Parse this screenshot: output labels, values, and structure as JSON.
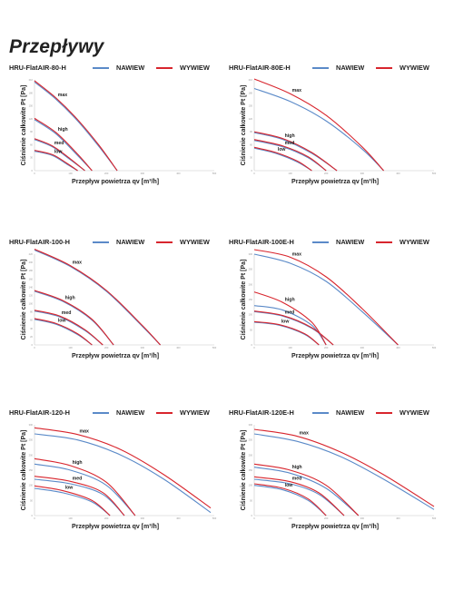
{
  "page": {
    "title": "Przepływy"
  },
  "legend": {
    "supply": "NAWIEW",
    "exhaust": "WYWIEW",
    "supply_color": "#5b8ac8",
    "exhaust_color": "#d8252d"
  },
  "axes": {
    "ylabel": "Ciśnienie całkowite Pt [Pa]",
    "xlabel": "Przepływ powietrza qv [m³/h]"
  },
  "chart_data": [
    {
      "type": "line",
      "title": "HRU-FlatAIR-80-H",
      "xlim": [
        0,
        500
      ],
      "ylim": [
        0,
        210
      ],
      "x_ticks": [
        0,
        100,
        200,
        300,
        400,
        500
      ],
      "y_ticks": [
        0,
        30,
        60,
        90,
        120,
        150,
        180,
        210
      ],
      "series": [
        {
          "name": "max",
          "x": [
            0,
            60,
            120,
            180,
            230
          ],
          "nawiew": [
            205,
            165,
            115,
            55,
            0
          ],
          "wywiew": [
            208,
            168,
            118,
            58,
            0
          ]
        },
        {
          "name": "high",
          "x": [
            0,
            60,
            120,
            160
          ],
          "nawiew": [
            118,
            85,
            35,
            0
          ],
          "wywiew": [
            121,
            88,
            38,
            0
          ]
        },
        {
          "name": "med",
          "x": [
            0,
            50,
            100,
            140
          ],
          "nawiew": [
            72,
            55,
            25,
            0
          ],
          "wywiew": [
            74,
            57,
            27,
            0
          ]
        },
        {
          "name": "low",
          "x": [
            0,
            50,
            90,
            120
          ],
          "nawiew": [
            45,
            35,
            15,
            0
          ],
          "wywiew": [
            47,
            37,
            17,
            0
          ]
        }
      ]
    },
    {
      "type": "line",
      "title": "HRU-FlatAIR-80E-H",
      "xlim": [
        0,
        500
      ],
      "ylim": [
        0,
        210
      ],
      "x_ticks": [
        0,
        100,
        200,
        300,
        400,
        500
      ],
      "y_ticks": [
        0,
        30,
        60,
        90,
        120,
        150,
        180,
        210
      ],
      "series": [
        {
          "name": "max",
          "x": [
            0,
            100,
            200,
            300,
            360
          ],
          "nawiew": [
            190,
            160,
            115,
            50,
            0
          ],
          "wywiew": [
            212,
            178,
            128,
            55,
            0
          ]
        },
        {
          "name": "high",
          "x": [
            0,
            80,
            160,
            230
          ],
          "nawiew": [
            88,
            72,
            40,
            0
          ],
          "wywiew": [
            90,
            74,
            42,
            0
          ]
        },
        {
          "name": "med",
          "x": [
            0,
            80,
            150,
            200
          ],
          "nawiew": [
            70,
            55,
            30,
            0
          ],
          "wywiew": [
            72,
            57,
            32,
            0
          ]
        },
        {
          "name": "low",
          "x": [
            0,
            60,
            120,
            160
          ],
          "nawiew": [
            52,
            40,
            20,
            0
          ],
          "wywiew": [
            54,
            42,
            22,
            0
          ]
        }
      ]
    },
    {
      "type": "line",
      "title": "HRU-FlatAIR-100-H",
      "xlim": [
        0,
        500
      ],
      "ylim": [
        0,
        220
      ],
      "x_ticks": [
        0,
        100,
        200,
        300,
        400,
        500
      ],
      "y_ticks": [
        0,
        20,
        40,
        60,
        80,
        100,
        120,
        140,
        160,
        180,
        200,
        220
      ],
      "series": [
        {
          "name": "max",
          "x": [
            0,
            100,
            200,
            300,
            350
          ],
          "nawiew": [
            230,
            190,
            130,
            45,
            0
          ],
          "wywiew": [
            232,
            192,
            132,
            47,
            0
          ]
        },
        {
          "name": "high",
          "x": [
            0,
            80,
            160,
            220
          ],
          "nawiew": [
            130,
            105,
            60,
            0
          ],
          "wywiew": [
            132,
            107,
            62,
            0
          ]
        },
        {
          "name": "med",
          "x": [
            0,
            70,
            140,
            190
          ],
          "nawiew": [
            82,
            68,
            35,
            0
          ],
          "wywiew": [
            84,
            70,
            37,
            0
          ]
        },
        {
          "name": "low",
          "x": [
            0,
            60,
            120,
            160
          ],
          "nawiew": [
            62,
            50,
            25,
            0
          ],
          "wywiew": [
            64,
            52,
            27,
            0
          ]
        }
      ]
    },
    {
      "type": "line",
      "title": "HRU-FlatAIR-100E-H",
      "xlim": [
        0,
        500
      ],
      "ylim": [
        0,
        300
      ],
      "x_ticks": [
        0,
        100,
        200,
        300,
        400,
        500
      ],
      "y_ticks": [
        0,
        50,
        100,
        150,
        200,
        250,
        300
      ],
      "series": [
        {
          "name": "max",
          "x": [
            0,
            100,
            200,
            300,
            400
          ],
          "nawiew": [
            300,
            270,
            210,
            110,
            0
          ],
          "wywiew": [
            315,
            290,
            225,
            120,
            0
          ]
        },
        {
          "name": "high",
          "x": [
            0,
            80,
            160,
            200
          ],
          "nawiew": [
            130,
            115,
            65,
            0
          ],
          "wywiew": [
            175,
            140,
            75,
            0
          ]
        },
        {
          "name": "med",
          "x": [
            0,
            80,
            160,
            220
          ],
          "nawiew": [
            110,
            95,
            55,
            0
          ],
          "wywiew": [
            112,
            97,
            57,
            0
          ]
        },
        {
          "name": "low",
          "x": [
            0,
            70,
            140,
            180
          ],
          "nawiew": [
            75,
            65,
            35,
            0
          ],
          "wywiew": [
            77,
            67,
            37,
            0
          ]
        }
      ]
    },
    {
      "type": "line",
      "title": "HRU-FlatAIR-120-H",
      "xlim": [
        0,
        500
      ],
      "ylim": [
        0,
        300
      ],
      "x_ticks": [
        0,
        100,
        200,
        300,
        400,
        500
      ],
      "y_ticks": [
        0,
        50,
        100,
        150,
        200,
        250,
        300
      ],
      "series": [
        {
          "name": "max",
          "x": [
            0,
            120,
            240,
            360,
            490
          ],
          "nawiew": [
            270,
            250,
            200,
            120,
            10
          ],
          "wywiew": [
            290,
            268,
            218,
            135,
            25
          ]
        },
        {
          "name": "high",
          "x": [
            0,
            100,
            200,
            280
          ],
          "nawiew": [
            170,
            150,
            100,
            0
          ],
          "wywiew": [
            188,
            165,
            110,
            0
          ]
        },
        {
          "name": "med",
          "x": [
            0,
            100,
            190,
            250
          ],
          "nawiew": [
            120,
            105,
            70,
            0
          ],
          "wywiew": [
            130,
            113,
            76,
            0
          ]
        },
        {
          "name": "low",
          "x": [
            0,
            80,
            160,
            210
          ],
          "nawiew": [
            90,
            75,
            45,
            0
          ],
          "wywiew": [
            98,
            82,
            50,
            0
          ]
        }
      ]
    },
    {
      "type": "line",
      "title": "HRU-FlatAIR-120E-H",
      "xlim": [
        0,
        500
      ],
      "ylim": [
        0,
        300
      ],
      "x_ticks": [
        0,
        100,
        200,
        300,
        400,
        500
      ],
      "y_ticks": [
        0,
        50,
        100,
        150,
        200,
        250,
        300
      ],
      "series": [
        {
          "name": "max",
          "x": [
            0,
            120,
            240,
            360,
            500
          ],
          "nawiew": [
            270,
            245,
            195,
            120,
            20
          ],
          "wywiew": [
            285,
            262,
            210,
            135,
            30
          ]
        },
        {
          "name": "high",
          "x": [
            0,
            100,
            200,
            290
          ],
          "nawiew": [
            160,
            140,
            90,
            0
          ],
          "wywiew": [
            170,
            150,
            100,
            0
          ]
        },
        {
          "name": "med",
          "x": [
            0,
            100,
            180,
            250
          ],
          "nawiew": [
            120,
            105,
            70,
            0
          ],
          "wywiew": [
            128,
            112,
            75,
            0
          ]
        },
        {
          "name": "low",
          "x": [
            0,
            80,
            150,
            200
          ],
          "nawiew": [
            100,
            85,
            50,
            0
          ],
          "wywiew": [
            105,
            90,
            55,
            0
          ]
        }
      ]
    }
  ]
}
